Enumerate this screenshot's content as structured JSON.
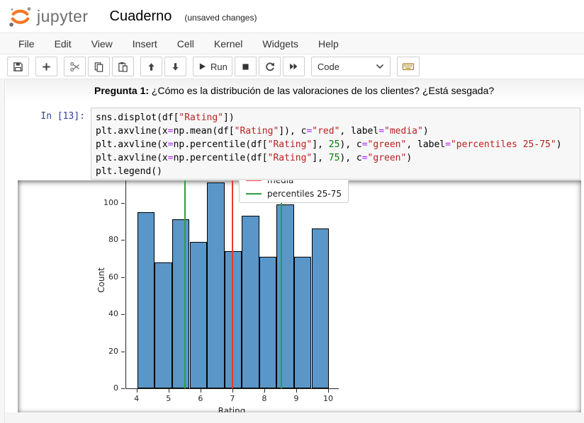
{
  "header": {
    "logo_text": "jupyter",
    "title": "Cuaderno",
    "status": "(unsaved changes)"
  },
  "menu": {
    "items": [
      "File",
      "Edit",
      "View",
      "Insert",
      "Cell",
      "Kernel",
      "Widgets",
      "Help"
    ]
  },
  "toolbar": {
    "groups": [
      {
        "buttons": [
          {
            "icon": "save"
          }
        ]
      },
      {
        "buttons": [
          {
            "icon": "add-cell"
          }
        ]
      },
      {
        "buttons": [
          {
            "icon": "cut"
          },
          {
            "icon": "copy"
          },
          {
            "icon": "paste"
          }
        ]
      },
      {
        "buttons": [
          {
            "icon": "move-up"
          },
          {
            "icon": "move-down"
          }
        ]
      },
      {
        "buttons": [
          {
            "icon": "run",
            "label": "Run"
          },
          {
            "icon": "stop"
          },
          {
            "icon": "restart-kernel"
          },
          {
            "icon": "restart-run-all"
          }
        ]
      }
    ],
    "cell_type_selector": {
      "value": "Code"
    },
    "keyboard_button": {
      "icon": "keyboard"
    }
  },
  "markdown_cell": {
    "bold": "Pregunta 1:",
    "text": " ¿Cómo es la distribución de las valoraciones de los clientes? ¿Está sesgada?"
  },
  "code_cell": {
    "prompt": "In [13]:",
    "lines": [
      [
        {
          "t": "sns.displot(df[",
          "c": "p"
        },
        {
          "t": "\"Rating\"",
          "c": "s"
        },
        {
          "t": "])",
          "c": "p"
        }
      ],
      [
        {
          "t": "plt.axvline(x",
          "c": "p"
        },
        {
          "t": "=",
          "c": "o"
        },
        {
          "t": "np.mean(df[",
          "c": "p"
        },
        {
          "t": "\"Rating\"",
          "c": "s"
        },
        {
          "t": "]), c",
          "c": "p"
        },
        {
          "t": "=",
          "c": "o"
        },
        {
          "t": "\"red\"",
          "c": "s"
        },
        {
          "t": ", label",
          "c": "p"
        },
        {
          "t": "=",
          "c": "o"
        },
        {
          "t": "\"media\"",
          "c": "s"
        },
        {
          "t": ")",
          "c": "p"
        }
      ],
      [
        {
          "t": "plt.axvline(x",
          "c": "p"
        },
        {
          "t": "=",
          "c": "o"
        },
        {
          "t": "np.percentile(df[",
          "c": "p"
        },
        {
          "t": "\"Rating\"",
          "c": "s"
        },
        {
          "t": "], ",
          "c": "p"
        },
        {
          "t": "25",
          "c": "n"
        },
        {
          "t": "), c",
          "c": "p"
        },
        {
          "t": "=",
          "c": "o"
        },
        {
          "t": "\"green\"",
          "c": "s"
        },
        {
          "t": ", label",
          "c": "p"
        },
        {
          "t": "=",
          "c": "o"
        },
        {
          "t": "\"percentiles 25-75\"",
          "c": "s"
        },
        {
          "t": ")",
          "c": "p"
        }
      ],
      [
        {
          "t": "plt.axvline(x",
          "c": "p"
        },
        {
          "t": "=",
          "c": "o"
        },
        {
          "t": "np.percentile(df[",
          "c": "p"
        },
        {
          "t": "\"Rating\"",
          "c": "s"
        },
        {
          "t": "], ",
          "c": "p"
        },
        {
          "t": "75",
          "c": "n"
        },
        {
          "t": "), c",
          "c": "p"
        },
        {
          "t": "=",
          "c": "o"
        },
        {
          "t": "\"green\"",
          "c": "s"
        },
        {
          "t": ")",
          "c": "p"
        }
      ],
      [
        {
          "t": "plt.legend()",
          "c": "p"
        }
      ]
    ]
  },
  "chart_data": {
    "type": "bar",
    "subtype": "histogram",
    "xlabel": "Rating",
    "ylabel": "Count",
    "bin_edges": [
      4.0,
      4.545,
      5.091,
      5.636,
      6.182,
      6.727,
      7.273,
      7.818,
      8.364,
      8.909,
      9.455,
      10.0
    ],
    "values": [
      95,
      68,
      91,
      79,
      111,
      74,
      93,
      71,
      99,
      71,
      86
    ],
    "xticks": [
      4,
      5,
      6,
      7,
      8,
      9,
      10
    ],
    "yticks": [
      0,
      20,
      40,
      60,
      80,
      100
    ],
    "xlim": [
      3.65,
      10.31
    ],
    "ylim": [
      0,
      116.6
    ],
    "bar_color": "#5a96c8",
    "bar_edge_color": "#000000",
    "vlines": [
      {
        "x": 6.97,
        "color": "#e8382f",
        "name": "mean"
      },
      {
        "x": 5.5,
        "color": "#2f9e41",
        "name": "percentile-25"
      },
      {
        "x": 8.5,
        "color": "#2f9e41",
        "name": "percentile-75"
      }
    ],
    "legend": {
      "position": "upper-right",
      "entries": [
        {
          "label": "media",
          "color": "#e8382f"
        },
        {
          "label": "percentiles 25-75",
          "color": "#2f9e41"
        }
      ]
    },
    "grid": false,
    "note": "figure top is clipped by scrolled output area"
  }
}
